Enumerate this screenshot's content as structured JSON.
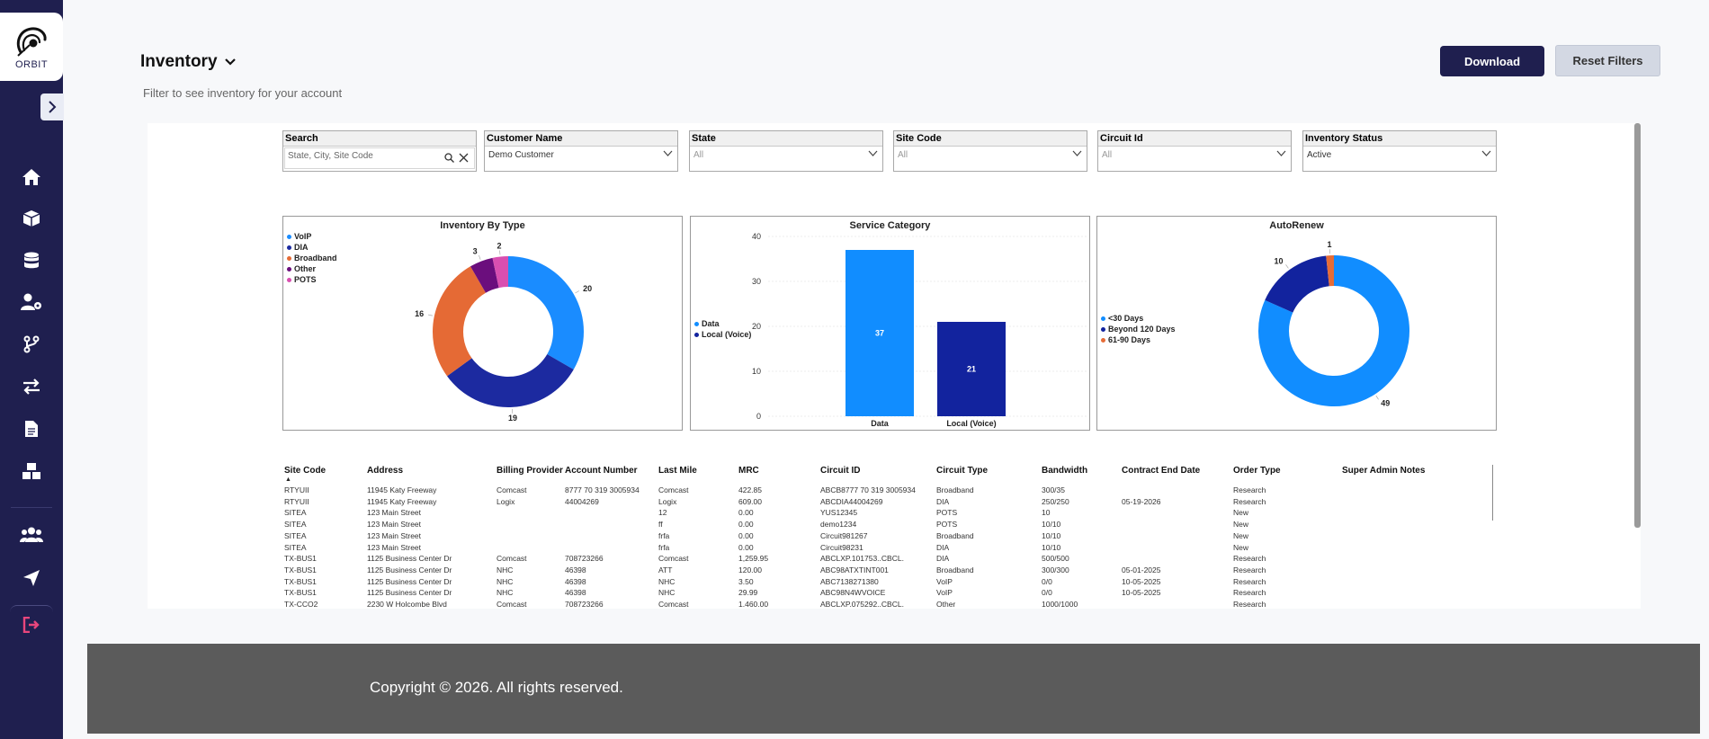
{
  "app": {
    "logo_text": "ORBIT"
  },
  "sidebar": {
    "items": [
      {
        "name": "home-icon"
      },
      {
        "name": "box-icon"
      },
      {
        "name": "database-icon"
      },
      {
        "name": "user-settings-icon"
      },
      {
        "name": "branch-icon"
      },
      {
        "name": "transfer-icon"
      },
      {
        "name": "document-icon"
      },
      {
        "name": "boxes-icon"
      },
      {
        "name": "users-icon"
      },
      {
        "name": "send-icon"
      },
      {
        "name": "logout-icon"
      }
    ],
    "logout_color": "#e8467c"
  },
  "header": {
    "title": "Inventory",
    "subtitle": "Filter to see inventory for your account",
    "download_label": "Download",
    "reset_label": "Reset Filters"
  },
  "filters": {
    "search": {
      "label": "Search",
      "placeholder": "State, City, Site Code"
    },
    "customer": {
      "label": "Customer Name",
      "value": "Demo Customer"
    },
    "state": {
      "label": "State",
      "value": "All"
    },
    "site_code": {
      "label": "Site Code",
      "value": "All"
    },
    "circuit_id": {
      "label": "Circuit Id",
      "value": "All"
    },
    "inventory_status": {
      "label": "Inventory Status",
      "value": "Active"
    }
  },
  "chart_data": [
    {
      "type": "pie",
      "title": "Inventory By Type",
      "legend_position": "left",
      "categories": [
        "VoIP",
        "DIA",
        "Broadband",
        "Other",
        "POTS"
      ],
      "values": [
        20,
        19,
        16,
        3,
        2
      ],
      "colors": [
        "#1a8cff",
        "#1c2aa0",
        "#e56a35",
        "#6b0e7d",
        "#d94fb0"
      ]
    },
    {
      "type": "bar",
      "title": "Service Category",
      "legend_position": "left",
      "categories": [
        "Data",
        "Local (Voice)"
      ],
      "values": [
        37,
        21
      ],
      "colors": [
        "#118dff",
        "#12239e"
      ],
      "ylim": [
        0,
        40
      ],
      "yticks": [
        0,
        10,
        20,
        30,
        40
      ],
      "grid": true
    },
    {
      "type": "pie",
      "title": "AutoRenew",
      "legend_position": "left",
      "categories": [
        "<30 Days",
        "Beyond 120 Days",
        "61-90 Days"
      ],
      "values": [
        49,
        10,
        1
      ],
      "colors": [
        "#118dff",
        "#12239e",
        "#e66c37"
      ]
    }
  ],
  "table": {
    "headers": [
      "Site Code",
      "Address",
      "Billing Provider",
      "Account Number",
      "Last Mile",
      "MRC",
      "Circuit ID",
      "Circuit Type",
      "Bandwidth",
      "Contract End Date",
      "Order Type",
      "Super Admin Notes"
    ],
    "rows": [
      [
        "RTYUII",
        "11945 Katy Freeway",
        "Comcast",
        "8777 70 319 3005934",
        "Comcast",
        "422.85",
        "ABCB8777 70 319 3005934",
        "Broadband",
        "300/35",
        "",
        "Research",
        ""
      ],
      [
        "RTYUII",
        "11945 Katy Freeway",
        "Logix",
        "44004269",
        "Logix",
        "609.00",
        "ABCDIA44004269",
        "DIA",
        "250/250",
        "05-19-2026",
        "Research",
        ""
      ],
      [
        "SITEA",
        "123 Main Street",
        "",
        "",
        "12",
        "0.00",
        "YUS12345",
        "POTS",
        "10",
        "",
        "New",
        ""
      ],
      [
        "SITEA",
        "123 Main Street",
        "",
        "",
        "ff",
        "0.00",
        "demo1234",
        "POTS",
        "10/10",
        "",
        "New",
        ""
      ],
      [
        "SITEA",
        "123 Main Street",
        "",
        "",
        "frfa",
        "0.00",
        "Circuit981267",
        "Broadband",
        "10/10",
        "",
        "New",
        ""
      ],
      [
        "SITEA",
        "123 Main Street",
        "",
        "",
        "frfa",
        "0.00",
        "Circuit98231",
        "DIA",
        "10/10",
        "",
        "New",
        ""
      ],
      [
        "TX-BUS1",
        "1125 Business Center Dr",
        "Comcast",
        "708723266",
        "Comcast",
        "1,259.95",
        "ABCLXP.101753..CBCL.",
        "DIA",
        "500/500",
        "",
        "Research",
        ""
      ],
      [
        "TX-BUS1",
        "1125 Business Center Dr",
        "NHC",
        "46398",
        "ATT",
        "120.00",
        "ABC98ATXTINT001",
        "Broadband",
        "300/300",
        "05-01-2025",
        "Research",
        ""
      ],
      [
        "TX-BUS1",
        "1125 Business Center Dr",
        "NHC",
        "46398",
        "NHC",
        "3.50",
        "ABC7138271380",
        "VoIP",
        "0/0",
        "10-05-2025",
        "Research",
        ""
      ],
      [
        "TX-BUS1",
        "1125 Business Center Dr",
        "NHC",
        "46398",
        "NHC",
        "29.99",
        "ABC98N4WVOICE",
        "VoIP",
        "0/0",
        "10-05-2025",
        "Research",
        ""
      ],
      [
        "TX-CCO2",
        "2230 W Holcombe Blvd",
        "Comcast",
        "708723266",
        "Comcast",
        "1,460.00",
        "ABCLXP.075292..CBCL.",
        "Other",
        "1000/1000",
        "",
        "Research",
        ""
      ]
    ]
  },
  "footer": {
    "copyright": "Copyright © 2026. All rights reserved."
  }
}
